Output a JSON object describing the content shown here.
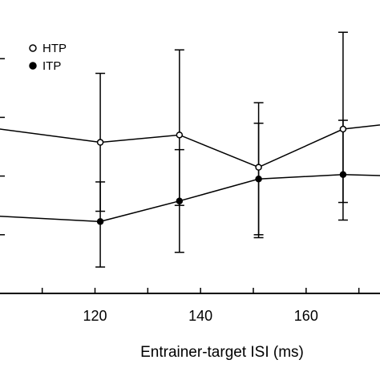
{
  "chart_data": {
    "type": "line",
    "xlabel": "Entrainer-target ISI (ms)",
    "ylabel": "",
    "title": "",
    "x_ticks": [
      120,
      140,
      160
    ],
    "xlim": [
      102,
      174
    ],
    "ylim": [
      0,
      10
    ],
    "grid": false,
    "legend_position": "top-left",
    "series": [
      {
        "name": "HTP",
        "marker": "open-circle",
        "color": "#000000",
        "points": [
          {
            "x": 100,
            "y": 5.65,
            "err_low": null,
            "err_high": null
          },
          {
            "x": 121,
            "y": 5.15,
            "err_low": 2.8,
            "err_high": 7.5
          },
          {
            "x": 136,
            "y": 5.4,
            "err_low": 3.0,
            "err_high": 8.3
          },
          {
            "x": 151,
            "y": 4.3,
            "err_low": 2.0,
            "err_high": 6.5
          },
          {
            "x": 167,
            "y": 5.6,
            "err_low": 3.1,
            "err_high": 8.9
          },
          {
            "x": 177,
            "y": 5.8,
            "err_low": null,
            "err_high": null
          }
        ]
      },
      {
        "name": "ITP",
        "marker": "filled-circle",
        "color": "#000000",
        "points": [
          {
            "x": 100,
            "y": 2.65,
            "err_low": null,
            "err_high": null
          },
          {
            "x": 121,
            "y": 2.45,
            "err_low": 0.9,
            "err_high": 3.8
          },
          {
            "x": 136,
            "y": 3.15,
            "err_low": 1.4,
            "err_high": 4.9
          },
          {
            "x": 151,
            "y": 3.9,
            "err_low": 1.9,
            "err_high": 5.8
          },
          {
            "x": 167,
            "y": 4.05,
            "err_low": 2.5,
            "err_high": 5.9
          },
          {
            "x": 177,
            "y": 4.0,
            "err_low": null,
            "err_high": null
          }
        ]
      }
    ]
  }
}
